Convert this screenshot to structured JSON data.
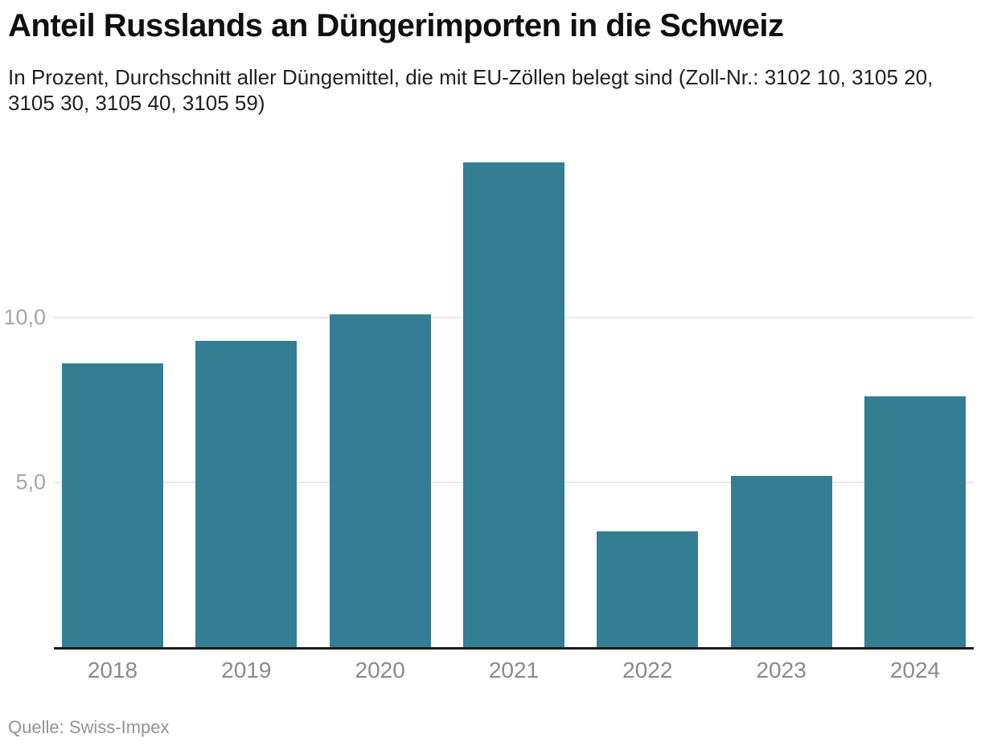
{
  "header": {
    "title": "Anteil Russlands an Düngerimporten in die Schweiz",
    "subtitle": "In Prozent, Durchschnitt aller Düngemittel, die mit EU-Zöllen belegt sind (Zoll-Nr.: 3102 10, 3105 20, 3105 30, 3105 40, 3105 59)"
  },
  "footer": {
    "source": "Quelle: Swiss-Impex"
  },
  "chart_data": {
    "type": "bar",
    "title": "Anteil Russlands an Düngerimporten in die Schweiz",
    "subtitle": "In Prozent, Durchschnitt aller Düngemittel, die mit EU-Zöllen belegt sind (Zoll-Nr.: 3102 10, 3105 20, 3105 30, 3105 40, 3105 59)",
    "categories": [
      "2018",
      "2019",
      "2020",
      "2021",
      "2022",
      "2023",
      "2024"
    ],
    "values": [
      8.6,
      9.3,
      10.1,
      14.7,
      3.5,
      5.2,
      7.6
    ],
    "unit": "Prozent",
    "xlabel": "",
    "ylabel": "",
    "ylim": [
      0,
      15
    ],
    "yticks": [
      {
        "value": 5,
        "label": "5,0"
      },
      {
        "value": 10,
        "label": "10,0"
      }
    ],
    "grid": "horizontal",
    "legend": "none",
    "bar_color": "#337E92",
    "source": "Quelle: Swiss-Impex"
  },
  "colors": {
    "bar": "#337E92",
    "gridline": "#e9e9e9",
    "axis_line": "#1a1a1a",
    "ytick_label": "#a6a6a6",
    "xtick_label": "#8a8a8a",
    "title_text": "#101010",
    "subtitle_text": "#1f1f1f",
    "source_text": "#949494"
  }
}
